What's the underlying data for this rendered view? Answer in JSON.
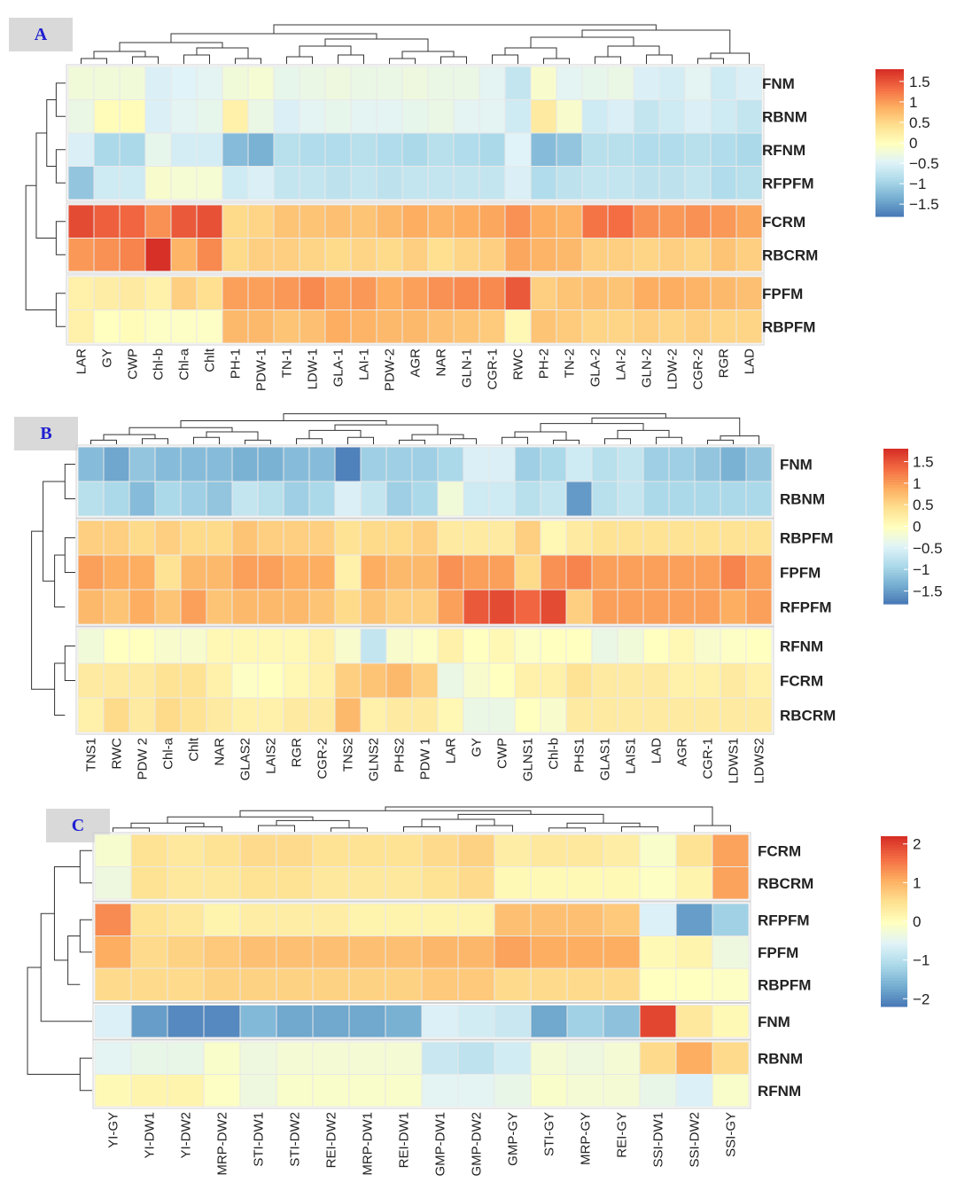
{
  "colors": {
    "scale": [
      "#4575b4",
      "#74add1",
      "#abd9e9",
      "#e0f3f8",
      "#ffffbf",
      "#fee090",
      "#fdae61",
      "#f46d43",
      "#d73027"
    ],
    "border": "#ffffff"
  },
  "chart_data": [
    {
      "type": "heatmap",
      "panel_label": "A",
      "columns": [
        "LAR",
        "GY",
        "CWP",
        "Chl-b",
        "Chl-a",
        "Chlt",
        "PH-1",
        "PDW-1",
        "TN-1",
        "LDW-1",
        "GLA-1",
        "LAI-1",
        "PDW-2",
        "AGR",
        "NAR",
        "GLN-1",
        "CGR-1",
        "RWC",
        "PH-2",
        "TN-2",
        "GLA-2",
        "LAI-2",
        "GLN-2",
        "LDW-2",
        "CGR-2",
        "RGR",
        "LAD"
      ],
      "column_groups": [
        6,
        11,
        10
      ],
      "rows": [
        "FNM",
        "RBNM",
        "RFNM",
        "RFPFM",
        "FCRM",
        "RBCRM",
        "FPFM",
        "RBPFM"
      ],
      "row_groups": [
        4,
        2,
        2
      ],
      "values": [
        [
          -0.2,
          -0.2,
          -0.2,
          -0.5,
          -0.45,
          -0.4,
          -0.2,
          -0.15,
          -0.35,
          -0.3,
          -0.25,
          -0.3,
          -0.3,
          -0.25,
          -0.3,
          -0.3,
          -0.4,
          -0.7,
          -0.1,
          -0.4,
          -0.35,
          -0.3,
          -0.5,
          -0.55,
          -0.4,
          -0.6,
          -0.5
        ],
        [
          -0.3,
          0.05,
          0.05,
          -0.5,
          -0.4,
          -0.35,
          0.2,
          -0.3,
          -0.5,
          -0.4,
          -0.35,
          -0.4,
          -0.4,
          -0.35,
          -0.3,
          -0.4,
          -0.4,
          -0.6,
          0.3,
          -0.1,
          -0.6,
          -0.5,
          -0.7,
          -0.6,
          -0.5,
          -0.6,
          -0.7
        ],
        [
          -0.5,
          -0.9,
          -0.9,
          -0.35,
          -0.55,
          -0.55,
          -1.2,
          -1.3,
          -0.8,
          -0.85,
          -0.85,
          -0.8,
          -0.85,
          -0.9,
          -0.8,
          -0.85,
          -0.9,
          -0.45,
          -1.2,
          -1.1,
          -0.8,
          -0.8,
          -0.85,
          -0.85,
          -0.8,
          -0.85,
          -0.9
        ],
        [
          -1.1,
          -0.6,
          -0.6,
          -0.1,
          -0.15,
          -0.15,
          -0.6,
          -0.5,
          -0.7,
          -0.7,
          -0.75,
          -0.7,
          -0.75,
          -0.7,
          -0.7,
          -0.7,
          -0.7,
          -0.5,
          -0.85,
          -0.75,
          -0.7,
          -0.7,
          -0.75,
          -0.75,
          -0.7,
          -0.85,
          -0.8
        ],
        [
          1.6,
          1.45,
          1.4,
          1.1,
          1.5,
          1.55,
          0.5,
          0.55,
          0.7,
          0.7,
          0.75,
          0.7,
          0.8,
          0.9,
          0.85,
          0.9,
          0.95,
          1.1,
          0.9,
          0.85,
          1.3,
          1.35,
          1.1,
          1.05,
          1.1,
          1.05,
          0.95
        ],
        [
          1.05,
          1.1,
          1.2,
          1.8,
          0.85,
          1.15,
          0.5,
          0.6,
          0.6,
          0.55,
          0.5,
          0.55,
          0.5,
          0.6,
          0.45,
          0.55,
          0.6,
          0.95,
          0.85,
          0.8,
          0.6,
          0.6,
          0.55,
          0.6,
          0.55,
          0.7,
          0.6
        ],
        [
          0.2,
          0.25,
          0.3,
          0.2,
          0.6,
          0.45,
          1.0,
          1.0,
          1.05,
          1.15,
          1.0,
          1.05,
          0.9,
          1.0,
          1.1,
          1.15,
          1.15,
          1.5,
          0.6,
          0.7,
          0.75,
          0.7,
          0.9,
          0.9,
          0.85,
          0.8,
          0.75
        ],
        [
          0.2,
          0.0,
          0.05,
          -0.05,
          -0.05,
          -0.05,
          0.8,
          0.8,
          0.7,
          0.75,
          0.9,
          0.85,
          0.8,
          0.8,
          0.75,
          0.7,
          0.65,
          0.1,
          0.7,
          0.65,
          0.55,
          0.55,
          0.6,
          0.55,
          0.6,
          0.55,
          0.55
        ]
      ],
      "legend_ticks": [
        "1.5",
        "1",
        "0.5",
        "0",
        "−0.5",
        "−1",
        "−1.5"
      ],
      "legend_tick_values": [
        1.5,
        1,
        0.5,
        0,
        -0.5,
        -1,
        -1.5
      ],
      "legend_range": [
        -1.8,
        1.8
      ]
    },
    {
      "type": "heatmap",
      "panel_label": "B",
      "columns": [
        "TNS1",
        "RWC",
        "PDW 2",
        "Chl-a",
        "Chlt",
        "NAR",
        "GLAS2",
        "LAIS2",
        "RGR",
        "CGR-2",
        "TNS2",
        "GLNS2",
        "PHS2",
        "PDW 1",
        "LAR",
        "GY",
        "CWP",
        "GLNS1",
        "Chl-b",
        "PHS1",
        "GLAS1",
        "LAIS1",
        "LAD",
        "AGR",
        "CGR-1",
        "LDWS1",
        "LDWS2"
      ],
      "column_groups": [
        27
      ],
      "rows": [
        "FNM",
        "RBNM",
        "RBPFM",
        "FPFM",
        "RFPFM",
        "RFNM",
        "FCRM",
        "RBCRM"
      ],
      "row_groups": [
        2,
        3,
        3
      ],
      "values": [
        [
          -1.2,
          -1.4,
          -1.1,
          -1.2,
          -1.2,
          -1.2,
          -1.3,
          -1.3,
          -1.2,
          -1.2,
          -1.7,
          -1.0,
          -1.0,
          -1.0,
          -0.9,
          -0.5,
          -0.5,
          -1.0,
          -0.9,
          -0.6,
          -0.8,
          -0.7,
          -1.0,
          -1.0,
          -1.1,
          -1.3,
          -1.1
        ],
        [
          -0.8,
          -0.9,
          -1.2,
          -0.9,
          -1.0,
          -1.1,
          -0.7,
          -0.8,
          -1.0,
          -0.9,
          -0.5,
          -0.7,
          -1.0,
          -0.9,
          -0.2,
          -0.6,
          -0.6,
          -0.8,
          -0.7,
          -1.5,
          -0.8,
          -0.7,
          -0.9,
          -0.9,
          -0.9,
          -0.9,
          -0.9
        ],
        [
          0.6,
          0.6,
          0.5,
          0.6,
          0.5,
          0.5,
          0.7,
          0.6,
          0.6,
          0.6,
          0.4,
          0.5,
          0.5,
          0.6,
          0.3,
          0.3,
          0.3,
          0.6,
          0.1,
          0.3,
          0.4,
          0.4,
          0.4,
          0.4,
          0.4,
          0.4,
          0.4
        ],
        [
          1.0,
          0.9,
          0.9,
          0.4,
          0.8,
          0.8,
          1.0,
          1.0,
          0.9,
          0.9,
          0.2,
          0.9,
          0.8,
          0.8,
          1.1,
          1.0,
          1.0,
          0.5,
          1.1,
          1.2,
          1.0,
          1.0,
          1.0,
          1.0,
          1.0,
          1.2,
          1.0
        ],
        [
          0.8,
          0.7,
          0.9,
          0.7,
          1.0,
          0.7,
          0.8,
          0.8,
          0.8,
          0.7,
          0.5,
          0.7,
          0.6,
          0.6,
          1.0,
          1.5,
          1.6,
          1.4,
          1.6,
          0.6,
          1.0,
          1.0,
          1.0,
          1.0,
          1.0,
          0.9,
          1.0
        ],
        [
          -0.2,
          0.0,
          0.0,
          -0.1,
          -0.1,
          0.1,
          0.1,
          0.1,
          0.1,
          0.2,
          -0.1,
          -0.7,
          -0.1,
          -0.05,
          0.2,
          0.0,
          0.1,
          -0.05,
          0.0,
          0.0,
          -0.3,
          -0.2,
          0.0,
          0.1,
          -0.1,
          -0.05,
          0.0
        ],
        [
          0.3,
          0.3,
          0.3,
          0.4,
          0.4,
          0.2,
          -0.05,
          0.0,
          0.1,
          0.2,
          0.6,
          0.7,
          0.8,
          0.6,
          -0.3,
          -0.1,
          0.0,
          0.2,
          0.2,
          0.4,
          0.3,
          0.3,
          0.3,
          0.2,
          0.2,
          0.3,
          0.2
        ],
        [
          0.2,
          0.5,
          0.3,
          0.5,
          0.4,
          0.3,
          0.2,
          0.2,
          0.3,
          0.3,
          0.8,
          0.2,
          0.3,
          0.3,
          0.1,
          -0.3,
          -0.3,
          0.0,
          -0.1,
          0.3,
          0.3,
          0.3,
          0.3,
          0.3,
          0.3,
          0.3,
          0.3
        ]
      ],
      "legend_ticks": [
        "1.5",
        "1",
        "0.5",
        "0",
        "−0.5",
        "−1",
        "−1.5"
      ],
      "legend_tick_values": [
        1.5,
        1,
        0.5,
        0,
        -0.5,
        -1,
        -1.5
      ],
      "legend_range": [
        -1.8,
        1.8
      ]
    },
    {
      "type": "heatmap",
      "panel_label": "C",
      "columns": [
        "YI-GY",
        "YI-DW1",
        "YI-DW2",
        "MRP-DW2",
        "STI-DW1",
        "STI-DW2",
        "REI-DW2",
        "MRP-DW1",
        "REI-DW1",
        "GMP-DW1",
        "GMP-DW2",
        "GMP-GY",
        "STI-GY",
        "MRP-GY",
        "REI-GY",
        "SSI-DW1",
        "SSI-DW2",
        "SSI-GY"
      ],
      "column_groups": [
        18
      ],
      "rows": [
        "FCRM",
        "RBCRM",
        "RFPFM",
        "FPFM",
        "RBPFM",
        "FNM",
        "RBNM",
        "RFNM"
      ],
      "row_groups": [
        2,
        3,
        1,
        2
      ],
      "values": [
        [
          -0.15,
          0.5,
          0.4,
          0.5,
          0.6,
          0.6,
          0.5,
          0.5,
          0.5,
          0.6,
          0.7,
          0.3,
          0.4,
          0.4,
          0.3,
          -0.1,
          0.5,
          1.2
        ],
        [
          -0.3,
          0.5,
          0.4,
          0.4,
          0.5,
          0.5,
          0.4,
          0.4,
          0.4,
          0.5,
          0.6,
          0.1,
          0.1,
          0.1,
          0.1,
          -0.05,
          0.2,
          1.2
        ],
        [
          1.4,
          0.5,
          0.4,
          0.2,
          0.3,
          0.3,
          0.3,
          0.2,
          0.2,
          0.2,
          0.2,
          0.9,
          0.9,
          0.9,
          0.8,
          -0.6,
          -1.8,
          -1.2
        ],
        [
          1.1,
          0.6,
          0.7,
          0.8,
          0.9,
          0.9,
          0.9,
          0.9,
          0.9,
          1.0,
          1.0,
          1.2,
          1.1,
          1.1,
          1.1,
          0.1,
          0.2,
          -0.3
        ],
        [
          0.6,
          0.6,
          0.6,
          0.7,
          0.7,
          0.7,
          0.7,
          0.7,
          0.7,
          0.8,
          0.8,
          0.6,
          0.6,
          0.6,
          0.6,
          0.0,
          0.0,
          -0.05
        ],
        [
          -0.6,
          -1.8,
          -2.0,
          -2.0,
          -1.5,
          -1.7,
          -1.7,
          -1.7,
          -1.6,
          -0.6,
          -0.7,
          -0.8,
          -1.7,
          -1.2,
          -1.4,
          2.0,
          0.4,
          0.1
        ],
        [
          -0.5,
          -0.4,
          -0.4,
          -0.1,
          -0.3,
          -0.2,
          -0.2,
          -0.2,
          -0.2,
          -0.8,
          -0.9,
          -0.7,
          -0.2,
          -0.3,
          -0.2,
          0.6,
          1.1,
          0.6
        ],
        [
          0.1,
          0.2,
          0.2,
          -0.05,
          -0.3,
          -0.1,
          -0.1,
          -0.1,
          -0.1,
          -0.5,
          -0.5,
          -0.4,
          -0.1,
          -0.2,
          -0.2,
          -0.4,
          -0.6,
          -0.1
        ]
      ],
      "legend_ticks": [
        "2",
        "1",
        "0",
        "−1",
        "−2"
      ],
      "legend_tick_values": [
        2,
        1,
        0,
        -1,
        -2
      ],
      "legend_range": [
        -2.2,
        2.2
      ]
    }
  ]
}
